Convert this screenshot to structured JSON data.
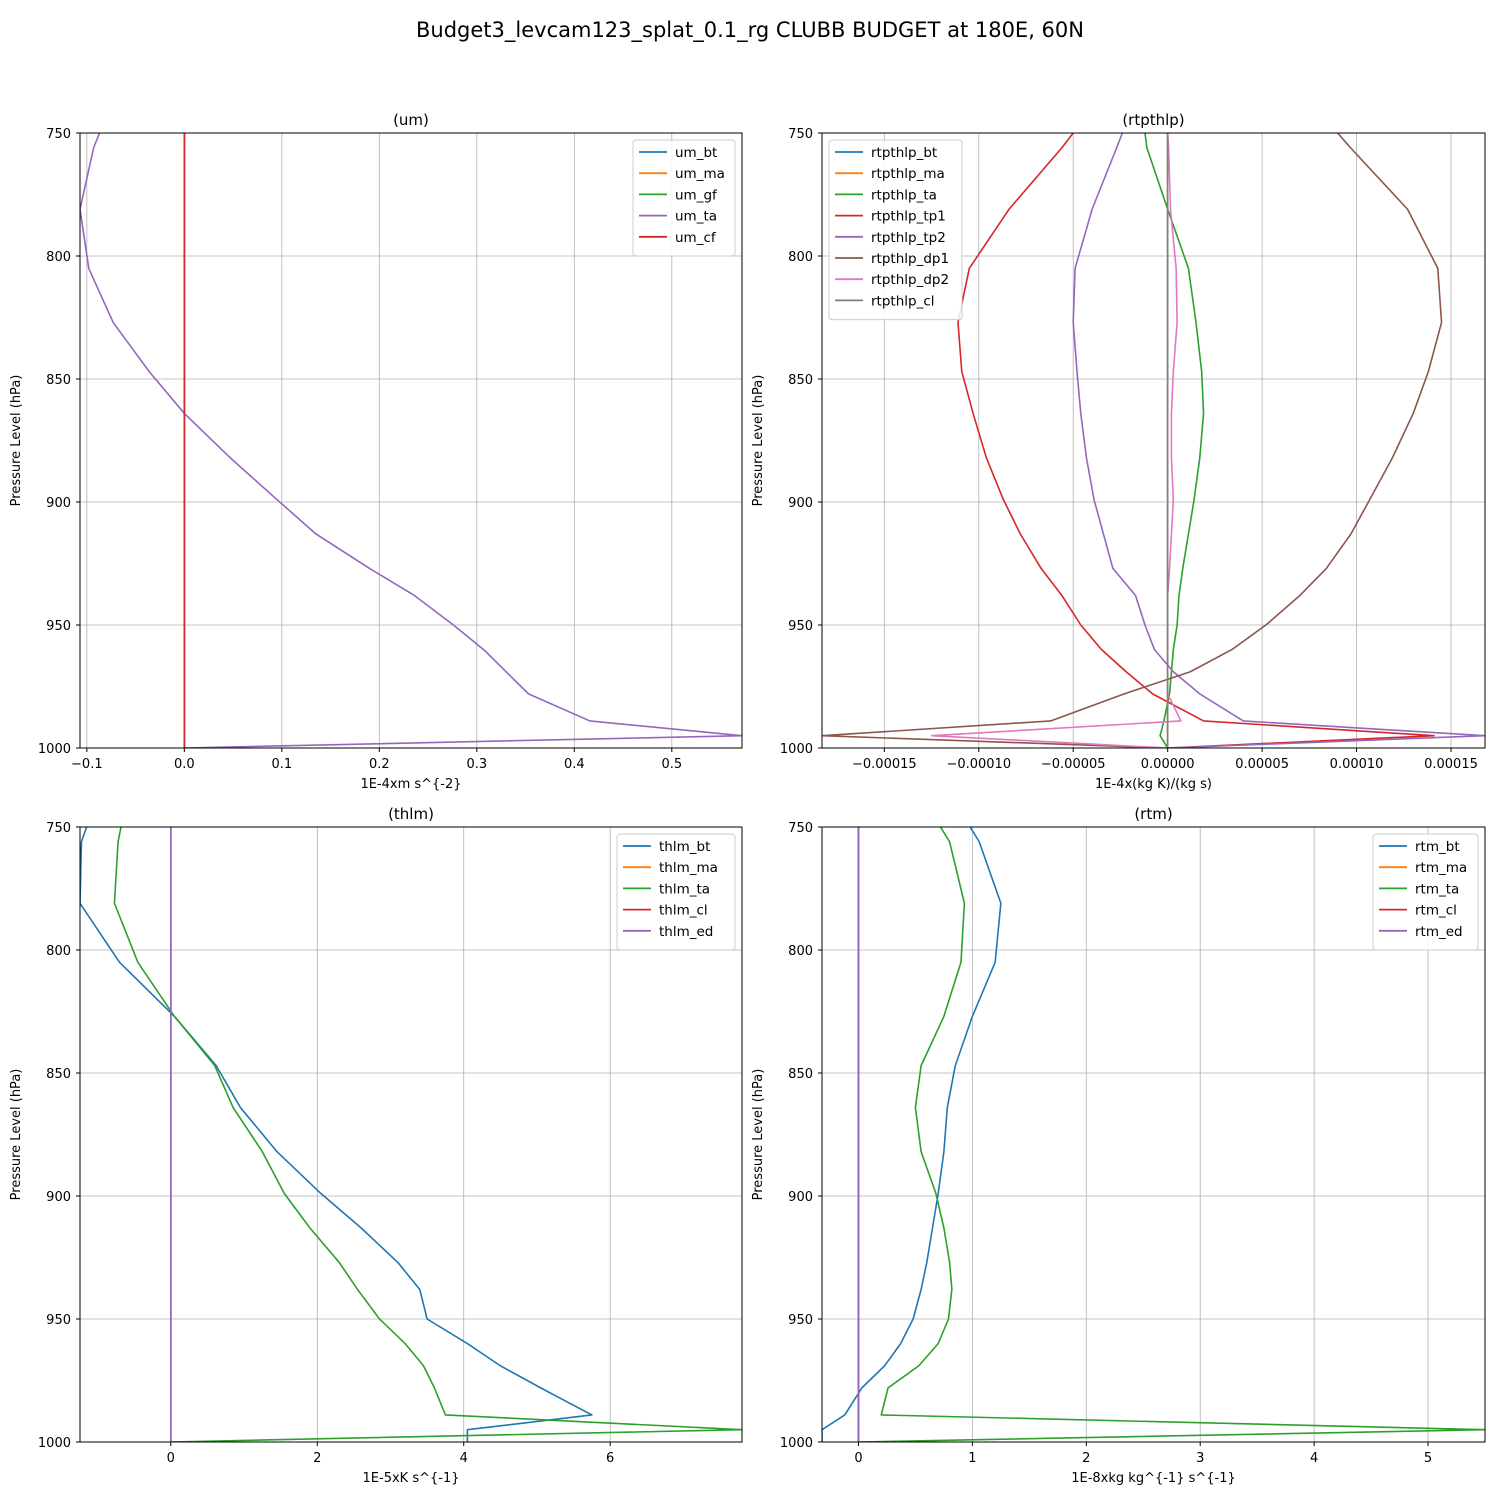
{
  "figure_title": "Budget3_levcam123_splat_0.1_rg CLUBB BUDGET at 180E, 60N",
  "chart_data": [
    {
      "type": "line",
      "title": "(um)",
      "xlabel": "1E-4xm s^{-2}",
      "ylabel": "Pressure Level (hPa)",
      "xlim": [
        -0.107,
        0.572
      ],
      "ylim": [
        1000,
        750
      ],
      "xticks": [
        -0.1,
        0.0,
        0.1,
        0.2,
        0.3,
        0.4,
        0.5
      ],
      "xtick_labels": [
        "−0.1",
        "0.0",
        "0.1",
        "0.2",
        "0.3",
        "0.4",
        "0.5"
      ],
      "yticks": [
        750,
        800,
        850,
        900,
        950,
        1000
      ],
      "ytick_labels": [
        "750",
        "800",
        "850",
        "900",
        "950",
        "1000"
      ],
      "legend_loc": "upper right",
      "levels": [
        750,
        756,
        781,
        805,
        827,
        847,
        864,
        882,
        899,
        913,
        927,
        938,
        950,
        960,
        969,
        978,
        989,
        995,
        1000
      ],
      "series": [
        {
          "name": "um_bt",
          "color": "#1f77b4",
          "values": [
            0,
            0,
            0,
            0,
            0,
            0,
            0,
            0,
            0,
            0,
            0,
            0,
            0,
            0,
            0,
            0,
            0,
            0,
            0
          ]
        },
        {
          "name": "um_ma",
          "color": "#ff7f0e",
          "values": [
            0,
            0,
            0,
            0,
            0,
            0,
            0,
            0,
            0,
            0,
            0,
            0,
            0,
            0,
            0,
            0,
            0,
            0,
            0
          ]
        },
        {
          "name": "um_gf",
          "color": "#2ca02c",
          "values": [
            0,
            0,
            0,
            0,
            0,
            0,
            0,
            0,
            0,
            0,
            0,
            0,
            0,
            0,
            0,
            0,
            0,
            0,
            0
          ]
        },
        {
          "name": "um_ta",
          "color": "#9467bd",
          "values": [
            -0.087,
            -0.093,
            -0.107,
            -0.098,
            -0.073,
            -0.036,
            0.0,
            0.047,
            0.095,
            0.135,
            0.19,
            0.236,
            0.276,
            0.307,
            0.33,
            0.353,
            0.416,
            0.572,
            0.0
          ]
        },
        {
          "name": "um_cf",
          "color": "#d62728",
          "values": [
            0,
            0,
            0,
            0,
            0,
            0,
            0,
            0,
            0,
            0,
            0,
            0,
            0,
            0,
            0,
            0,
            0,
            0,
            0
          ]
        }
      ]
    },
    {
      "type": "line",
      "title": "(rtpthlp)",
      "xlabel": "1E-4x(kg K)/(kg s)",
      "ylabel": "Pressure Level (hPa)",
      "xlim": [
        -0.000183,
        0.000168
      ],
      "ylim": [
        1000,
        750
      ],
      "xticks": [
        -0.00015,
        -0.0001,
        -5e-05,
        0.0,
        5e-05,
        0.0001,
        0.00015
      ],
      "xtick_labels": [
        "−0.00015",
        "−0.00010",
        "−0.00005",
        "0.00000",
        "0.00005",
        "0.00010",
        "0.00015"
      ],
      "yticks": [
        750,
        800,
        850,
        900,
        950,
        1000
      ],
      "ytick_labels": [
        "750",
        "800",
        "850",
        "900",
        "950",
        "1000"
      ],
      "legend_loc": "upper left",
      "levels": [
        750,
        756,
        781,
        805,
        827,
        847,
        864,
        882,
        899,
        913,
        927,
        938,
        950,
        960,
        969,
        978,
        989,
        995,
        1000
      ],
      "series": [
        {
          "name": "rtpthlp_bt",
          "color": "#1f77b4",
          "values": [
            0,
            0,
            0,
            0,
            0,
            0,
            0,
            0,
            0,
            0,
            0,
            0,
            0,
            0,
            0,
            0,
            0,
            0,
            0
          ]
        },
        {
          "name": "rtpthlp_ma",
          "color": "#ff7f0e",
          "values": [
            0,
            0,
            0,
            0,
            0,
            0,
            0,
            0,
            0,
            0,
            0,
            0,
            0,
            0,
            0,
            0,
            0,
            0,
            0
          ]
        },
        {
          "name": "rtpthlp_ta",
          "color": "#2ca02c",
          "values": [
            -1.2e-05,
            -1.1e-05,
            0.0,
            1.1e-05,
            1.5e-05,
            1.8e-05,
            1.9e-05,
            1.7e-05,
            1.4e-05,
            1.1e-05,
            8e-06,
            6e-06,
            5e-06,
            3e-06,
            2e-06,
            1e-06,
            -2e-06,
            -4e-06,
            0.0
          ]
        },
        {
          "name": "rtpthlp_tp1",
          "color": "#d62728",
          "values": [
            -5e-05,
            -5.6e-05,
            -8.4e-05,
            -0.000105,
            -0.000111,
            -0.000109,
            -0.000103,
            -9.6e-05,
            -8.7e-05,
            -7.8e-05,
            -6.7e-05,
            -5.6e-05,
            -4.6e-05,
            -3.5e-05,
            -2.2e-05,
            -8e-06,
            1.9e-05,
            0.000141,
            0.0
          ]
        },
        {
          "name": "rtpthlp_tp2",
          "color": "#9467bd",
          "values": [
            -2.4e-05,
            -2.7e-05,
            -4e-05,
            -4.9e-05,
            -5e-05,
            -4.8e-05,
            -4.6e-05,
            -4.3e-05,
            -3.9e-05,
            -3.4e-05,
            -2.9e-05,
            -1.7e-05,
            -1.2e-05,
            -7e-06,
            3e-06,
            1.7e-05,
            4e-05,
            0.000168,
            0.0
          ]
        },
        {
          "name": "rtpthlp_dp1",
          "color": "#8c564b",
          "values": [
            9e-05,
            9.68e-05,
            0.000127,
            0.000143,
            0.000145,
            0.000138,
            0.00013,
            0.000119,
            0.000107,
            9.7e-05,
            8.4e-05,
            7e-05,
            5.2e-05,
            3.4e-05,
            1.2e-05,
            -2.3e-05,
            -6.2e-05,
            -0.000183,
            0.0
          ]
        },
        {
          "name": "rtpthlp_dp2",
          "color": "#e377c2",
          "values": [
            0.0,
            5e-07,
            1.5e-06,
            4.5e-06,
            5e-06,
            3e-06,
            2e-06,
            2e-06,
            3e-06,
            2e-06,
            1e-06,
            0.0,
            0.0,
            0.0,
            0.0,
            0.0,
            7e-06,
            -0.000125,
            0.0
          ]
        },
        {
          "name": "rtpthlp_cl",
          "color": "#7f7f7f",
          "values": [
            0,
            0,
            0,
            0,
            0,
            0,
            0,
            0,
            0,
            0,
            0,
            0,
            0,
            0,
            0,
            0,
            0,
            0,
            0
          ]
        }
      ]
    },
    {
      "type": "line",
      "title": "(thlm)",
      "xlabel": "1E-5xK s^{-1}",
      "ylabel": "Pressure Level (hPa)",
      "xlim": [
        -1.24,
        7.8
      ],
      "ylim": [
        1000,
        750
      ],
      "xticks": [
        0,
        2,
        4,
        6
      ],
      "xtick_labels": [
        "0",
        "2",
        "4",
        "6"
      ],
      "yticks": [
        750,
        800,
        850,
        900,
        950,
        1000
      ],
      "ytick_labels": [
        "750",
        "800",
        "850",
        "900",
        "950",
        "1000"
      ],
      "legend_loc": "upper right",
      "levels": [
        750,
        756,
        781,
        805,
        827,
        847,
        864,
        882,
        899,
        913,
        927,
        938,
        950,
        960,
        969,
        978,
        989,
        995,
        1000
      ],
      "series": [
        {
          "name": "thlm_bt",
          "color": "#1f77b4",
          "values": [
            -1.15,
            -1.22,
            -1.24,
            -0.7,
            0.05,
            0.62,
            0.95,
            1.45,
            2.05,
            2.6,
            3.1,
            3.4,
            3.5,
            4.05,
            4.5,
            5.05,
            5.75,
            4.05,
            4.05
          ]
        },
        {
          "name": "thlm_ma",
          "color": "#ff7f0e",
          "values": [
            0,
            0,
            0,
            0,
            0,
            0,
            0,
            0,
            0,
            0,
            0,
            0,
            0,
            0,
            0,
            0,
            0,
            0,
            0
          ]
        },
        {
          "name": "thlm_ta",
          "color": "#2ca02c",
          "values": [
            -0.68,
            -0.72,
            -0.77,
            -0.45,
            0.05,
            0.6,
            0.85,
            1.25,
            1.55,
            1.9,
            2.3,
            2.55,
            2.85,
            3.2,
            3.45,
            3.6,
            3.75,
            7.8,
            0.0
          ]
        },
        {
          "name": "thlm_cl",
          "color": "#d62728",
          "values": [
            0,
            0,
            0,
            0,
            0,
            0,
            0,
            0,
            0,
            0,
            0,
            0,
            0,
            0,
            0,
            0,
            0,
            0,
            0
          ]
        },
        {
          "name": "thlm_ed",
          "color": "#9467bd",
          "values": [
            0,
            0,
            0,
            0,
            0,
            0,
            0,
            0,
            0,
            0,
            0,
            0,
            0,
            0,
            0,
            0,
            0,
            0,
            0
          ]
        }
      ]
    },
    {
      "type": "line",
      "title": "(rtm)",
      "xlabel": "1E-8xkg kg^{-1} s^{-1}",
      "ylabel": "Pressure Level (hPa)",
      "xlim": [
        -0.32,
        5.5
      ],
      "ylim": [
        1000,
        750
      ],
      "xticks": [
        0,
        1,
        2,
        3,
        4,
        5
      ],
      "xtick_labels": [
        "0",
        "1",
        "2",
        "3",
        "4",
        "5"
      ],
      "yticks": [
        750,
        800,
        850,
        900,
        950,
        1000
      ],
      "ytick_labels": [
        "750",
        "800",
        "850",
        "900",
        "950",
        "1000"
      ],
      "legend_loc": "upper right",
      "levels": [
        750,
        756,
        781,
        805,
        827,
        847,
        864,
        882,
        899,
        913,
        927,
        938,
        950,
        960,
        969,
        978,
        989,
        995,
        1000
      ],
      "series": [
        {
          "name": "rtm_bt",
          "color": "#1f77b4",
          "values": [
            0.98,
            1.06,
            1.25,
            1.2,
            1.0,
            0.85,
            0.78,
            0.75,
            0.7,
            0.65,
            0.6,
            0.55,
            0.48,
            0.37,
            0.23,
            0.03,
            -0.12,
            -0.32,
            -0.32
          ]
        },
        {
          "name": "rtm_ma",
          "color": "#ff7f0e",
          "values": [
            0,
            0,
            0,
            0,
            0,
            0,
            0,
            0,
            0,
            0,
            0,
            0,
            0,
            0,
            0,
            0,
            0,
            0,
            0
          ]
        },
        {
          "name": "rtm_ta",
          "color": "#2ca02c",
          "values": [
            0.72,
            0.8,
            0.93,
            0.9,
            0.75,
            0.55,
            0.5,
            0.55,
            0.68,
            0.75,
            0.8,
            0.82,
            0.79,
            0.7,
            0.53,
            0.26,
            0.2,
            5.5,
            0.0
          ]
        },
        {
          "name": "rtm_cl",
          "color": "#d62728",
          "values": [
            0,
            0,
            0,
            0,
            0,
            0,
            0,
            0,
            0,
            0,
            0,
            0,
            0,
            0,
            0,
            0,
            0,
            0,
            0
          ]
        },
        {
          "name": "rtm_ed",
          "color": "#9467bd",
          "values": [
            0,
            0,
            0,
            0,
            0,
            0,
            0,
            0,
            0,
            0,
            0,
            0,
            0,
            0,
            0,
            0,
            0,
            0,
            0
          ]
        }
      ]
    }
  ]
}
